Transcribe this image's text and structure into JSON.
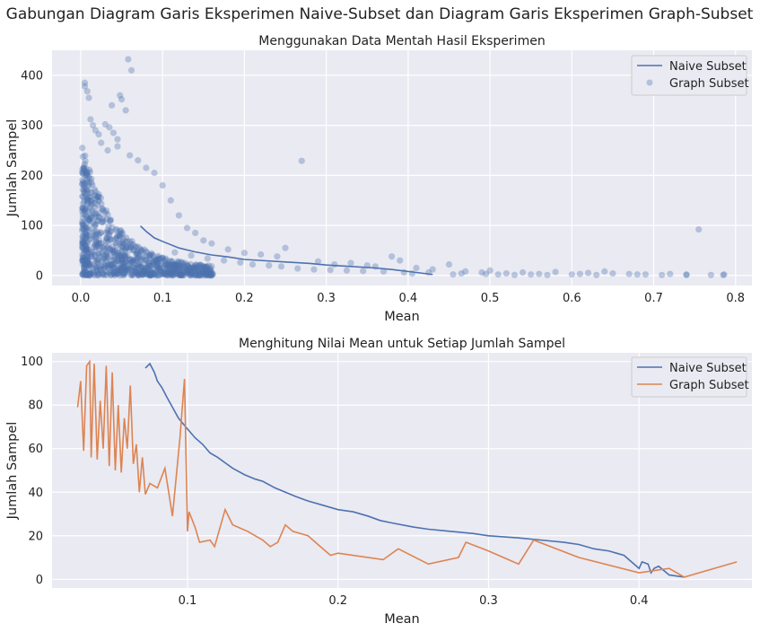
{
  "figure": {
    "suptitle": "Gabungan Diagram Garis Eksperimen Naive-Subset dan Diagram Garis Eksperimen Graph-Subset"
  },
  "chart_data": [
    {
      "type": "scatter",
      "title": "Menggunakan Data Mentah Hasil Eksperimen",
      "xlabel": "Mean",
      "ylabel": "Jumlah Sampel",
      "xlim": [
        -0.035,
        0.82
      ],
      "ylim": [
        -20,
        450
      ],
      "xticks": [
        0,
        0.1,
        0.2,
        0.3,
        0.4,
        0.5,
        0.6,
        0.7,
        0.8
      ],
      "xtick_labels": [
        "0.0",
        "0.1",
        "0.2",
        "0.3",
        "0.4",
        "0.5",
        "0.6",
        "0.7",
        "0.8"
      ],
      "yticks": [
        0,
        100,
        200,
        300,
        400
      ],
      "ytick_labels": [
        "0",
        "100",
        "200",
        "300",
        "400"
      ],
      "grid": true,
      "legend_position": "top-right",
      "colors": {
        "naive": "#4c72b0",
        "graph": "#4c72b0"
      },
      "series": [
        {
          "name": "Naive Subset",
          "kind": "line",
          "x": [
            0.073,
            0.08,
            0.09,
            0.1,
            0.12,
            0.14,
            0.16,
            0.18,
            0.2,
            0.22,
            0.25,
            0.28,
            0.3,
            0.33,
            0.36,
            0.38,
            0.4,
            0.41,
            0.43
          ],
          "y": [
            99,
            88,
            75,
            68,
            55,
            47,
            41,
            37,
            32,
            30,
            27,
            24,
            21,
            18,
            15,
            12,
            8,
            6,
            2
          ]
        },
        {
          "name": "Graph Subset",
          "kind": "scatter",
          "points": [
            [
              0.005,
              385
            ],
            [
              0.005,
              378
            ],
            [
              0.008,
              368
            ],
            [
              0.01,
              355
            ],
            [
              0.012,
              312
            ],
            [
              0.015,
              300
            ],
            [
              0.018,
              290
            ],
            [
              0.022,
              282
            ],
            [
              0.03,
              302
            ],
            [
              0.035,
              296
            ],
            [
              0.04,
              285
            ],
            [
              0.045,
              272
            ],
            [
              0.05,
              352
            ],
            [
              0.055,
              330
            ],
            [
              0.058,
              432
            ],
            [
              0.062,
              410
            ],
            [
              0.048,
              360
            ],
            [
              0.038,
              340
            ],
            [
              0.045,
              258
            ],
            [
              0.025,
              265
            ],
            [
              0.033,
              250
            ],
            [
              0.06,
              240
            ],
            [
              0.07,
              230
            ],
            [
              0.08,
              215
            ],
            [
              0.09,
              205
            ],
            [
              0.1,
              180
            ],
            [
              0.11,
              150
            ],
            [
              0.12,
              120
            ],
            [
              0.13,
              95
            ],
            [
              0.14,
              85
            ],
            [
              0.15,
              70
            ],
            [
              0.16,
              64
            ],
            [
              0.18,
              52
            ],
            [
              0.2,
              45
            ],
            [
              0.22,
              42
            ],
            [
              0.24,
              38
            ],
            [
              0.25,
              55
            ],
            [
              0.27,
              229
            ],
            [
              0.29,
              28
            ],
            [
              0.31,
              22
            ],
            [
              0.33,
              25
            ],
            [
              0.35,
              20
            ],
            [
              0.36,
              18
            ],
            [
              0.38,
              38
            ],
            [
              0.39,
              30
            ],
            [
              0.41,
              15
            ],
            [
              0.43,
              12
            ],
            [
              0.45,
              22
            ],
            [
              0.47,
              8
            ],
            [
              0.49,
              6
            ],
            [
              0.5,
              10
            ],
            [
              0.52,
              4
            ],
            [
              0.54,
              6
            ],
            [
              0.56,
              3
            ],
            [
              0.58,
              7
            ],
            [
              0.6,
              2
            ],
            [
              0.62,
              5
            ],
            [
              0.64,
              8
            ],
            [
              0.65,
              4
            ],
            [
              0.67,
              3
            ],
            [
              0.69,
              2
            ],
            [
              0.72,
              3
            ],
            [
              0.74,
              2
            ],
            [
              0.755,
              92
            ],
            [
              0.785,
              1
            ],
            [
              0.786,
              2
            ],
            [
              0.77,
              1
            ],
            [
              0.74,
              1
            ],
            [
              0.71,
              1
            ],
            [
              0.68,
              2
            ],
            [
              0.63,
              1
            ],
            [
              0.61,
              3
            ],
            [
              0.57,
              1
            ],
            [
              0.55,
              2
            ],
            [
              0.53,
              1
            ],
            [
              0.51,
              2
            ],
            [
              0.495,
              3
            ],
            [
              0.465,
              4
            ],
            [
              0.455,
              2
            ],
            [
              0.425,
              6
            ],
            [
              0.405,
              4
            ],
            [
              0.395,
              6
            ],
            [
              0.37,
              8
            ],
            [
              0.345,
              9
            ],
            [
              0.325,
              10
            ],
            [
              0.305,
              11
            ],
            [
              0.285,
              12
            ],
            [
              0.265,
              14
            ],
            [
              0.245,
              18
            ],
            [
              0.23,
              20
            ],
            [
              0.21,
              22
            ],
            [
              0.195,
              26
            ],
            [
              0.175,
              30
            ],
            [
              0.155,
              34
            ],
            [
              0.135,
              40
            ],
            [
              0.115,
              46
            ]
          ]
        }
      ]
    },
    {
      "type": "line",
      "title": "Menghitung Nilai Mean untuk Setiap Jumlah Sampel",
      "xlabel": "Mean",
      "ylabel": "Jumlah Sampel",
      "xlim": [
        0.01,
        0.475
      ],
      "ylim": [
        -4,
        104
      ],
      "xticks": [
        0.1,
        0.2,
        0.3,
        0.4
      ],
      "xtick_labels": [
        "0.1",
        "0.2",
        "0.3",
        "0.4"
      ],
      "yticks": [
        0,
        20,
        40,
        60,
        80,
        100
      ],
      "ytick_labels": [
        "0",
        "20",
        "40",
        "60",
        "80",
        "100"
      ],
      "grid": true,
      "legend_position": "top-right",
      "colors": {
        "naive": "#4c72b0",
        "graph": "#dd8452"
      },
      "series": [
        {
          "name": "Naive Subset",
          "x": [
            0.072,
            0.075,
            0.078,
            0.08,
            0.083,
            0.086,
            0.09,
            0.094,
            0.1,
            0.105,
            0.11,
            0.115,
            0.12,
            0.126,
            0.13,
            0.138,
            0.145,
            0.15,
            0.158,
            0.165,
            0.172,
            0.18,
            0.19,
            0.2,
            0.21,
            0.22,
            0.228,
            0.235,
            0.25,
            0.26,
            0.275,
            0.29,
            0.3,
            0.32,
            0.335,
            0.35,
            0.36,
            0.37,
            0.38,
            0.385,
            0.39,
            0.395,
            0.4,
            0.402,
            0.406,
            0.408,
            0.41,
            0.413,
            0.42,
            0.43
          ],
          "y": [
            97,
            99,
            95,
            91,
            88,
            84,
            79,
            74,
            69,
            65,
            62,
            58,
            56,
            53,
            51,
            48,
            46,
            45,
            42,
            40,
            38,
            36,
            34,
            32,
            31,
            29,
            27,
            26,
            24,
            23,
            22,
            21,
            20,
            19,
            18,
            17,
            16,
            14,
            13,
            12,
            11,
            8,
            5,
            8,
            7,
            3,
            5,
            6,
            2,
            1
          ]
        },
        {
          "name": "Graph Subset",
          "x": [
            0.027,
            0.029,
            0.031,
            0.033,
            0.035,
            0.036,
            0.038,
            0.04,
            0.042,
            0.044,
            0.046,
            0.048,
            0.05,
            0.052,
            0.054,
            0.056,
            0.058,
            0.06,
            0.062,
            0.064,
            0.066,
            0.068,
            0.07,
            0.072,
            0.075,
            0.08,
            0.085,
            0.09,
            0.095,
            0.098,
            0.1,
            0.101,
            0.105,
            0.108,
            0.115,
            0.118,
            0.125,
            0.13,
            0.14,
            0.15,
            0.155,
            0.16,
            0.165,
            0.17,
            0.18,
            0.19,
            0.195,
            0.2,
            0.23,
            0.24,
            0.26,
            0.28,
            0.285,
            0.3,
            0.32,
            0.33,
            0.36,
            0.4,
            0.42,
            0.43,
            0.465
          ],
          "y": [
            79,
            91,
            59,
            98,
            100,
            56,
            99,
            55,
            82,
            60,
            98,
            52,
            95,
            50,
            80,
            49,
            74,
            60,
            89,
            53,
            62,
            40,
            56,
            39,
            44,
            42,
            51,
            29,
            65,
            92,
            22,
            31,
            24,
            17,
            18,
            15,
            32,
            25,
            22,
            18,
            15,
            17,
            25,
            22,
            20,
            14,
            11,
            12,
            9,
            14,
            7,
            10,
            17,
            13,
            7,
            18,
            10,
            3,
            5,
            1,
            8
          ]
        }
      ]
    }
  ]
}
